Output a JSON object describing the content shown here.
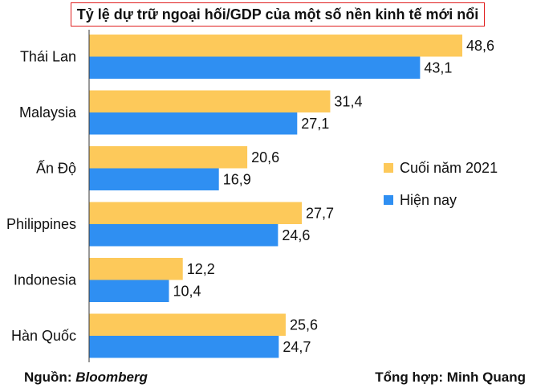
{
  "title": "Tỷ lệ dự trữ ngoại hối/GDP của một số nền kinh tế mới nổi",
  "footer": {
    "source_label": "Nguồn: ",
    "source_name": "Bloomberg",
    "compiler": "Tổng hợp: Minh Quang"
  },
  "colors": {
    "end2021": "#fdc95a",
    "now": "#2f8ff2",
    "axis": "#333333"
  },
  "chart_data": {
    "type": "bar",
    "orientation": "horizontal",
    "title": "Tỷ lệ dự trữ ngoại hối/GDP của một số nền kinh tế mới nổi",
    "categories": [
      "Thái Lan",
      "Malaysia",
      "Ấn Độ",
      "Philippines",
      "Indonesia",
      "Hàn Quốc"
    ],
    "series": [
      {
        "name": "Cuối năm 2021",
        "values": [
          48.6,
          31.4,
          20.6,
          27.7,
          12.2,
          25.6
        ],
        "labels": [
          "48,6",
          "31,4",
          "20,6",
          "27,7",
          "12,2",
          "25,6"
        ]
      },
      {
        "name": "Hiện nay",
        "values": [
          43.1,
          27.1,
          16.9,
          24.6,
          10.4,
          24.7
        ],
        "labels": [
          "43,1",
          "27,1",
          "16,9",
          "24,6",
          "10,4",
          "24,7"
        ]
      }
    ],
    "xlim": [
      0,
      50
    ],
    "legend": "right",
    "grid": false
  }
}
